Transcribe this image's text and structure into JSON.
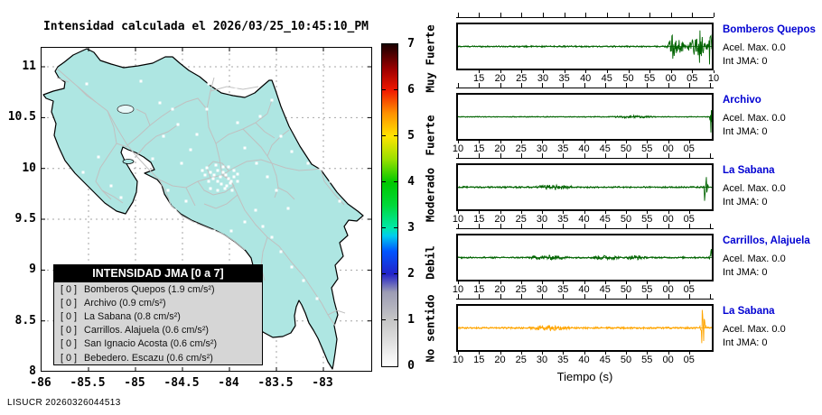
{
  "app": {
    "footer": "LISUCR 20260326044513"
  },
  "map": {
    "title": "Intensidad calculada el 2026/03/25_10:45:10_PM",
    "x_ticks": [
      "-86",
      "-85.5",
      "-85",
      "-84.5",
      "-84",
      "-83.5",
      "-83"
    ],
    "y_ticks": [
      "11",
      "10.5",
      "10",
      "9.5",
      "9",
      "8.5",
      "8"
    ],
    "legend": {
      "title": "INTENSIDAD JMA [0 a 7]",
      "entries": [
        {
          "value": "[ 0 ]",
          "label": "Bomberos Quepos (1.9 cm/s²)"
        },
        {
          "value": "[ 0 ]",
          "label": "Archivo (0.9 cm/s²)"
        },
        {
          "value": "[ 0 ]",
          "label": "La Sabana (0.8 cm/s²)"
        },
        {
          "value": "[ 0 ]",
          "label": "Carrillos. Alajuela (0.6 cm/s²)"
        },
        {
          "value": "[ 0 ]",
          "label": "San Ignacio Acosta (0.6 cm/s²)"
        },
        {
          "value": "[ 0 ]",
          "label": "Bebedero. Escazu (0.6 cm/s²)"
        }
      ]
    }
  },
  "colorbar": {
    "numbers": [
      "7",
      "6",
      "5",
      "4",
      "3",
      "2",
      "1",
      "0"
    ],
    "scale_labels": [
      "Muy Fuerte",
      "Fuerte",
      "Moderado",
      "Debil",
      "No sentido"
    ],
    "accent_colors": {
      "land": "#aee6e2",
      "trace_green": "#006400",
      "trace_orange": "#FFA500",
      "station_blue": "#0000d2"
    }
  },
  "waveforms": {
    "xlabel": "Tiempo (s)",
    "panels": [
      {
        "station": "Bomberos Quepos",
        "acel": "Acel. Max. 0.0",
        "int_jma": "Int JMA: 0",
        "color": "#006400",
        "ticks": {
          "labels": [
            "15",
            "20",
            "25",
            "30",
            "35",
            "40",
            "45",
            "50",
            "55",
            "00",
            "05",
            "10"
          ],
          "start_pct": 8.8,
          "step_pct": 8.29
        },
        "signal": {
          "base": 0.8,
          "bursts": [
            {
              "from": 0.82,
              "to": 0.9,
              "amp": 7
            },
            {
              "from": 0.9,
              "to": 0.985,
              "amp": 9
            }
          ],
          "spikes": [
            {
              "at": 0.845,
              "amp": 9,
              "w": 0.008
            },
            {
              "at": 0.955,
              "amp": 11,
              "w": 0.007
            },
            {
              "at": 0.992,
              "amp": 23,
              "w": 0.006
            }
          ]
        }
      },
      {
        "station": "Archivo",
        "acel": "Acel. Max. 0.0",
        "int_jma": "Int JMA: 0",
        "color": "#006400",
        "ticks": {
          "labels": [
            "10",
            "15",
            "20",
            "25",
            "30",
            "35",
            "40",
            "45",
            "50",
            "55",
            "00",
            "05"
          ],
          "start_pct": 0.7,
          "step_pct": 8.16
        },
        "signal": {
          "base": 0.5,
          "bursts": [
            {
              "from": 0.6,
              "to": 0.78,
              "amp": 1.0
            }
          ],
          "spikes": [
            {
              "at": 0.998,
              "amp": 21,
              "w": 0.004
            }
          ]
        }
      },
      {
        "station": "La Sabana",
        "acel": "Acel. Max. 0.0",
        "int_jma": "Int JMA: 0",
        "color": "#006400",
        "ticks": {
          "labels": [
            "10",
            "15",
            "20",
            "25",
            "30",
            "35",
            "40",
            "45",
            "50",
            "55",
            "00",
            "05"
          ],
          "start_pct": 0.7,
          "step_pct": 8.16
        },
        "signal": {
          "base": 0.9,
          "bursts": [
            {
              "from": 0.3,
              "to": 0.46,
              "amp": 1.8
            }
          ],
          "spikes": [
            {
              "at": 0.975,
              "amp": 23,
              "w": 0.006
            }
          ]
        }
      },
      {
        "station": "Carrillos, Alajuela",
        "acel": "Acel. Max. 0.0",
        "int_jma": "Int JMA: 0",
        "color": "#006400",
        "ticks": {
          "labels": [
            "10",
            "15",
            "20",
            "25",
            "30",
            "35",
            "40",
            "45",
            "50",
            "55",
            "00",
            "05"
          ],
          "start_pct": 0.7,
          "step_pct": 8.16
        },
        "signal": {
          "base": 0.9,
          "bursts": [
            {
              "from": 0.28,
              "to": 0.44,
              "amp": 1.7
            },
            {
              "from": 0.52,
              "to": 0.64,
              "amp": 1.7
            },
            {
              "from": 0.66,
              "to": 0.74,
              "amp": 1.8
            }
          ],
          "spikes": [
            {
              "at": 0.998,
              "amp": 13,
              "w": 0.004
            }
          ]
        }
      },
      {
        "station": "La Sabana",
        "acel": "Acel. Max. 0.0",
        "int_jma": "Int JMA: 0",
        "color": "#FFA500",
        "ticks": {
          "labels": [
            "10",
            "15",
            "20",
            "25",
            "30",
            "35",
            "40",
            "45",
            "50",
            "55",
            "00",
            "05"
          ],
          "start_pct": 0.7,
          "step_pct": 8.16
        },
        "signal": {
          "base": 1.0,
          "bursts": [
            {
              "from": 0.28,
              "to": 0.44,
              "amp": 2.0
            }
          ],
          "spikes": [
            {
              "at": 0.965,
              "amp": 24,
              "w": 0.007
            }
          ]
        }
      }
    ]
  },
  "chart_data": [
    {
      "type": "map",
      "title": "Intensidad calculada el 2026/03/25_10:45:10_PM",
      "region": "Costa Rica",
      "x_ticks": [
        -86,
        -85.5,
        -85,
        -84.5,
        -84,
        -83.5,
        -83
      ],
      "y_ticks": [
        11,
        10.5,
        10,
        9.5,
        9,
        8.5,
        8
      ],
      "grid": true,
      "colorbar": {
        "range": [
          0,
          7
        ],
        "ticks": [
          0,
          1,
          2,
          3,
          4,
          5,
          6,
          7
        ],
        "position": "right",
        "zone_labels": [
          "No sentido",
          "Debil",
          "Moderado",
          "Fuerte",
          "Muy Fuerte"
        ]
      },
      "legend_title": "INTENSIDAD JMA [0 a 7]",
      "stations": [
        {
          "name": "Bomberos Quepos",
          "int_jma": 0,
          "acel_max_cm_s2": 1.9
        },
        {
          "name": "Archivo",
          "int_jma": 0,
          "acel_max_cm_s2": 0.9
        },
        {
          "name": "La Sabana",
          "int_jma": 0,
          "acel_max_cm_s2": 0.8
        },
        {
          "name": "Carrillos. Alajuela",
          "int_jma": 0,
          "acel_max_cm_s2": 0.6
        },
        {
          "name": "San Ignacio Acosta",
          "int_jma": 0,
          "acel_max_cm_s2": 0.6
        },
        {
          "name": "Bebedero. Escazu",
          "int_jma": 0,
          "acel_max_cm_s2": 0.6
        }
      ]
    },
    {
      "type": "line",
      "title": "Bomberos Quepos",
      "xlabel": "Tiempo (s)",
      "x_ticks": [
        "15",
        "20",
        "25",
        "30",
        "35",
        "40",
        "45",
        "50",
        "55",
        "00",
        "05",
        "10"
      ],
      "acel_max": 0.0,
      "int_jma": 0,
      "color": "#006400",
      "pattern": "flat near zero, strong burst in final 15% of window, maximum spike at right edge"
    },
    {
      "type": "line",
      "title": "Archivo",
      "xlabel": "Tiempo (s)",
      "x_ticks": [
        "10",
        "15",
        "20",
        "25",
        "30",
        "35",
        "40",
        "45",
        "50",
        "55",
        "00",
        "05"
      ],
      "acel_max": 0.0,
      "int_jma": 0,
      "color": "#006400",
      "pattern": "quiet trace with single narrow spike at extreme right edge"
    },
    {
      "type": "line",
      "title": "La Sabana",
      "xlabel": "Tiempo (s)",
      "x_ticks": [
        "10",
        "15",
        "20",
        "25",
        "30",
        "35",
        "40",
        "45",
        "50",
        "55",
        "00",
        "05"
      ],
      "acel_max": 0.0,
      "int_jma": 0,
      "color": "#006400",
      "pattern": "quiet trace, mild noise around 30-36 s, large spike near right edge"
    },
    {
      "type": "line",
      "title": "Carrillos, Alajuela",
      "xlabel": "Tiempo (s)",
      "x_ticks": [
        "10",
        "15",
        "20",
        "25",
        "30",
        "35",
        "40",
        "45",
        "50",
        "55",
        "00",
        "05"
      ],
      "acel_max": 0.0,
      "int_jma": 0,
      "color": "#006400",
      "pattern": "quiet trace with small bursts near 35-38 s, 54-57 s, 00-01 s and narrow spike at right edge"
    },
    {
      "type": "line",
      "title": "La Sabana",
      "xlabel": "Tiempo (s)",
      "x_ticks": [
        "10",
        "15",
        "20",
        "25",
        "30",
        "35",
        "40",
        "45",
        "50",
        "55",
        "00",
        "05"
      ],
      "acel_max": 0.0,
      "int_jma": 0,
      "color": "#FFA500",
      "pattern": "quiet trace, mild noise around 31-36 s, large spike near right edge"
    }
  ]
}
